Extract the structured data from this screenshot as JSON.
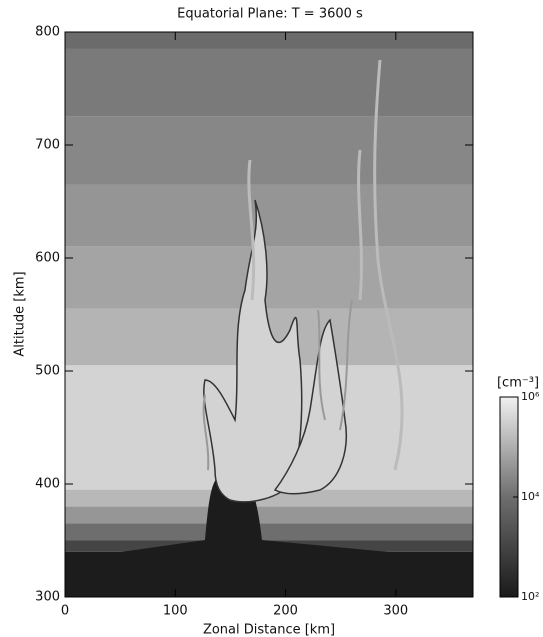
{
  "chart_data": {
    "type": "contour",
    "title": "Equatorial Plane: T =   3600 s",
    "x_label": "Zonal Distance [km]",
    "y_label": "Altitude [km]",
    "xlim": [
      0,
      370
    ],
    "xticks": [
      0,
      100,
      200,
      300
    ],
    "ylim": [
      300,
      800
    ],
    "yticks": [
      300,
      400,
      500,
      600,
      700,
      800
    ],
    "bands": [
      {
        "top": 800,
        "bottom": 785,
        "color": "#6b6b6b"
      },
      {
        "top": 785,
        "bottom": 725,
        "color": "#7a7a7a"
      },
      {
        "top": 725,
        "bottom": 665,
        "color": "#878787"
      },
      {
        "top": 665,
        "bottom": 610,
        "color": "#959595"
      },
      {
        "top": 610,
        "bottom": 555,
        "color": "#a4a4a4"
      },
      {
        "top": 555,
        "bottom": 505,
        "color": "#b4b4b4"
      },
      {
        "top": 505,
        "bottom": 395,
        "color": "#d3d3d3"
      },
      {
        "top": 395,
        "bottom": 380,
        "color": "#b8b8b8"
      },
      {
        "top": 380,
        "bottom": 365,
        "color": "#969696"
      },
      {
        "top": 365,
        "bottom": 350,
        "color": "#6e6e6e"
      },
      {
        "top": 350,
        "bottom": 340,
        "color": "#454545"
      },
      {
        "top": 340,
        "bottom": 300,
        "color": "#1c1c1c"
      }
    ],
    "colorbar": {
      "label": "[cm⁻³]",
      "log": true,
      "lim": [
        100,
        1000000
      ],
      "ticks": [
        {
          "value": 100,
          "label": "10²"
        },
        {
          "value": 10000,
          "label": "10⁴"
        },
        {
          "value": 1000000,
          "label": "10⁶"
        }
      ]
    }
  }
}
